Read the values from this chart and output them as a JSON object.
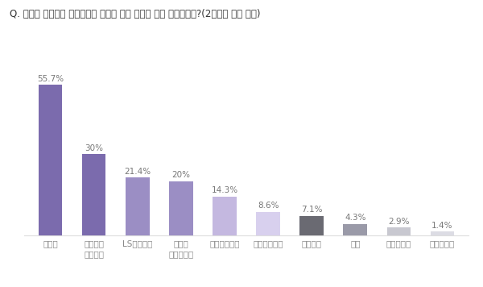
{
  "title": "Q. 귀사가 선호하는 모션컨트롤 솔루션 전문 기업은 어느 기업입니까?(2개까지 선택 가능)",
  "categories": [
    "지멘스",
    "슈나이더\n일렉트릭",
    "LS메카피온",
    "로크웰\n오토메이션",
    "미쓰비시전기",
    "보쉬렉스로스",
    "야스카와",
    "파카",
    "인아엠씨티",
    "아진엑스텍"
  ],
  "values": [
    55.7,
    30.0,
    21.4,
    20.0,
    14.3,
    8.6,
    7.1,
    4.3,
    2.9,
    1.4
  ],
  "labels": [
    "55.7%",
    "30%",
    "21.4%",
    "20%",
    "14.3%",
    "8.6%",
    "7.1%",
    "4.3%",
    "2.9%",
    "1.4%"
  ],
  "bar_colors": [
    "#7B6BAD",
    "#7B6BAD",
    "#9B8EC4",
    "#9B8EC4",
    "#C4B8E0",
    "#D8D0EE",
    "#6A6A72",
    "#9A9AA8",
    "#C8C8D0",
    "#DCDCE4"
  ],
  "background_color": "#FFFFFF",
  "title_fontsize": 8.5,
  "label_fontsize": 7.5,
  "tick_fontsize": 7.5,
  "label_color": "#777777",
  "tick_color": "#888888",
  "title_color": "#333333",
  "bottom_line_color": "#DDDDDD",
  "ylim": [
    0,
    68
  ],
  "bar_width": 0.55
}
